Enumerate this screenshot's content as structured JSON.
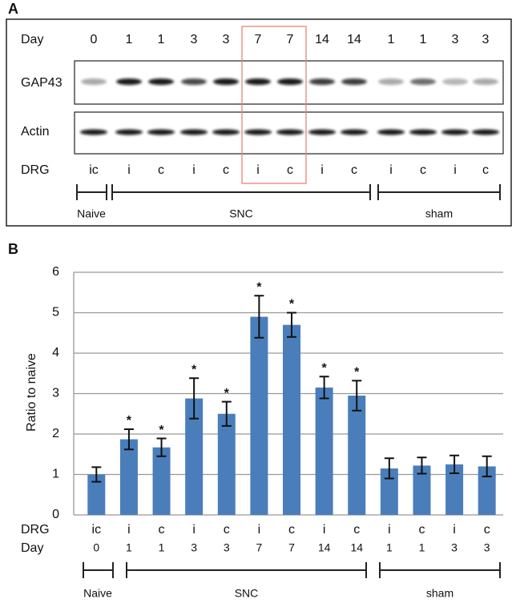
{
  "panel_a": {
    "label": "A",
    "day_label": "Day",
    "days": [
      "0",
      "1",
      "1",
      "3",
      "3",
      "7",
      "7",
      "14",
      "14",
      "1",
      "1",
      "3",
      "3"
    ],
    "rows": [
      "GAP43",
      "Actin"
    ],
    "drg_label": "DRG",
    "drg": [
      "ic",
      "i",
      "c",
      "i",
      "c",
      "i",
      "c",
      "i",
      "c",
      "i",
      "c",
      "i",
      "c"
    ],
    "groups": [
      "Naive",
      "SNC",
      "sham"
    ]
  },
  "chart_data": {
    "type": "bar",
    "panel_label": "B",
    "y_label": "Ratio to naive",
    "categories": [
      "ic",
      "i",
      "c",
      "i",
      "c",
      "i",
      "c",
      "i",
      "c",
      "i",
      "c",
      "i",
      "c"
    ],
    "days": [
      "0",
      "1",
      "1",
      "3",
      "3",
      "7",
      "7",
      "14",
      "14",
      "1",
      "1",
      "3",
      "3"
    ],
    "x_row_labels": [
      "DRG",
      "Day"
    ],
    "values": [
      1.0,
      1.87,
      1.67,
      2.88,
      2.5,
      4.9,
      4.7,
      3.15,
      2.95,
      1.15,
      1.22,
      1.25,
      1.2
    ],
    "errors": [
      0.18,
      0.25,
      0.22,
      0.5,
      0.3,
      0.52,
      0.3,
      0.27,
      0.37,
      0.25,
      0.2,
      0.22,
      0.25
    ],
    "significance": [
      null,
      "*",
      "*",
      "*",
      "*",
      "*",
      "*",
      "*",
      "*",
      null,
      null,
      null,
      null
    ],
    "groups": [
      "Naive",
      "SNC",
      "sham"
    ],
    "color": "#4a7ebb",
    "ylim": [
      0,
      6
    ],
    "yticks": [
      0,
      1,
      2,
      3,
      4,
      5,
      6
    ],
    "grid": true
  }
}
